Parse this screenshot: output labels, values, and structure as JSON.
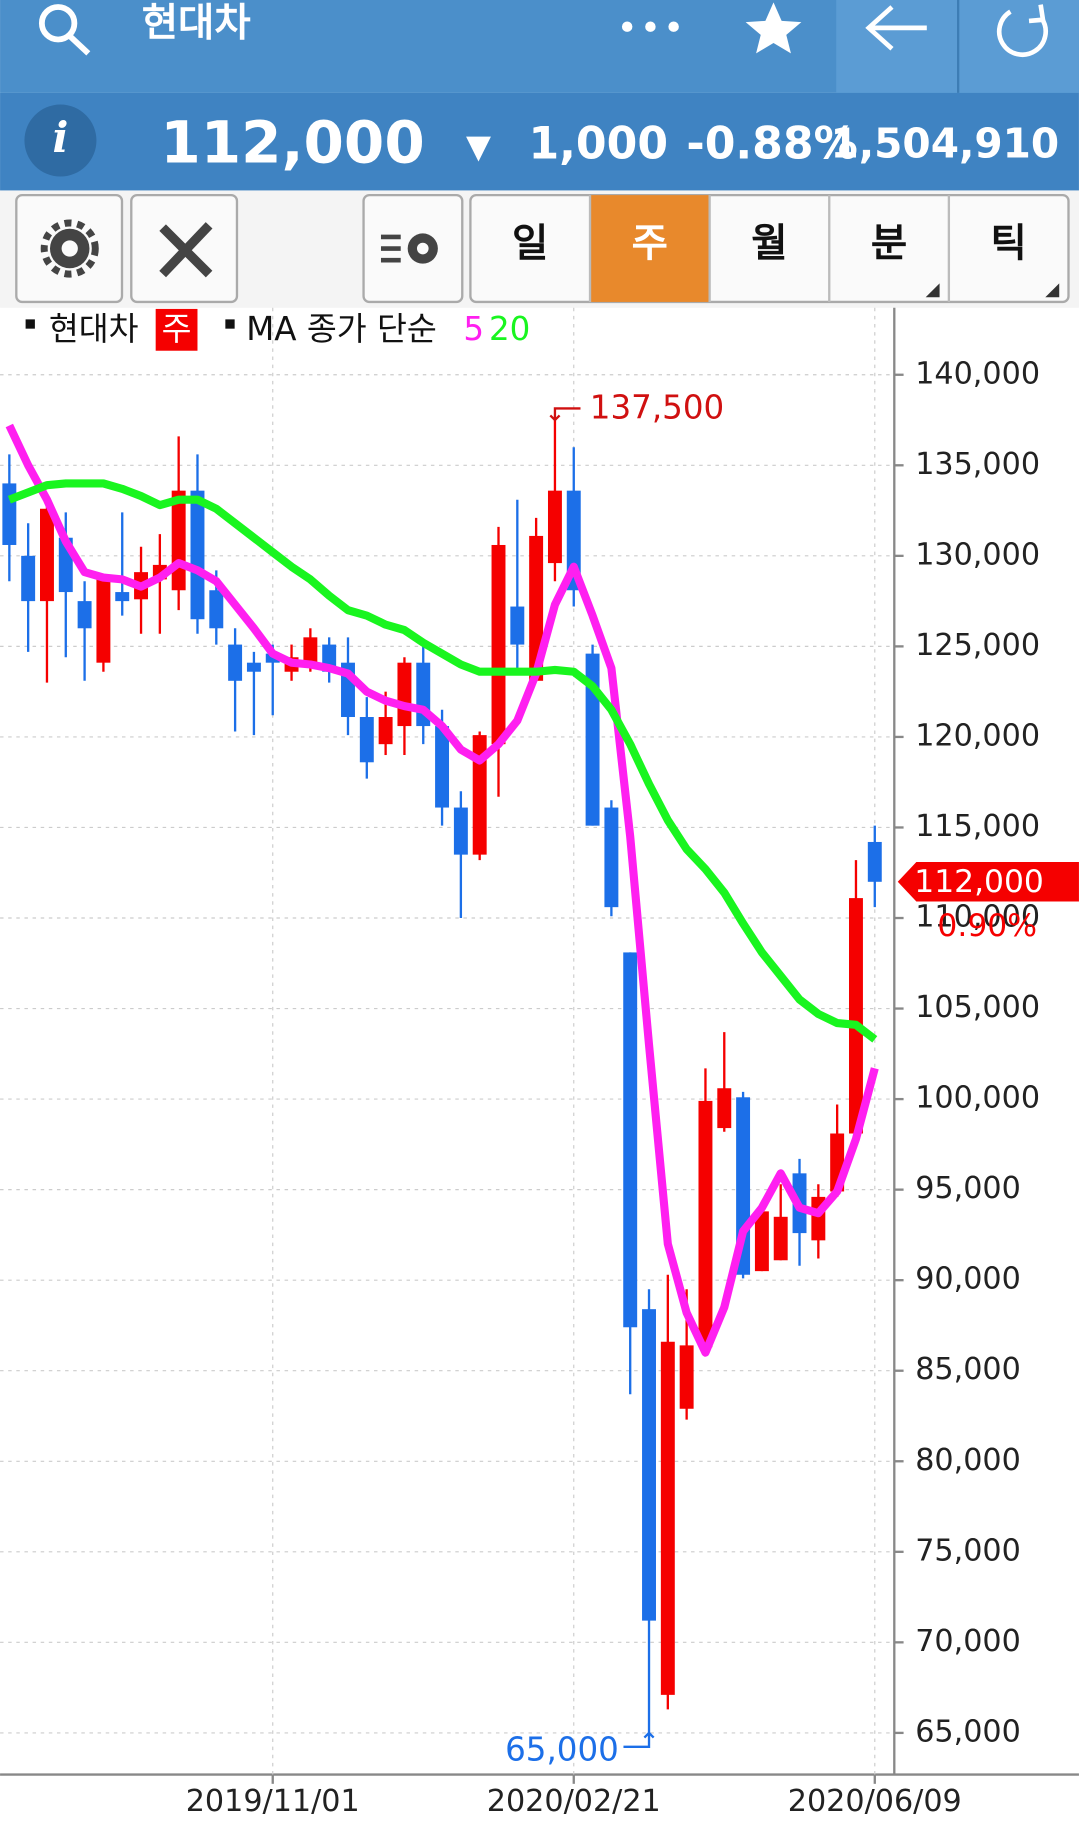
{
  "header": {
    "title": "현대차",
    "info": "i",
    "price": "112,000",
    "arrow": "▼",
    "change": "1,000",
    "change_pct": "-0.88%",
    "volume": "1,504,910"
  },
  "toolbar": {
    "tabs": [
      "일",
      "주",
      "월",
      "분",
      "틱"
    ],
    "selected": 1
  },
  "chart_data": {
    "type": "candlestick",
    "categories": [
      null,
      null,
      null,
      null,
      null,
      null,
      null,
      null,
      null,
      null,
      null,
      null,
      null,
      null,
      "2019/11/01",
      null,
      null,
      null,
      null,
      null,
      null,
      null,
      null,
      null,
      null,
      null,
      null,
      null,
      null,
      null,
      "2020/02/21",
      null,
      null,
      null,
      null,
      null,
      null,
      null,
      null,
      null,
      null,
      null,
      null,
      null,
      null,
      null,
      "2020/06/09"
    ],
    "legend_title": "MA 종가 단순",
    "series": [
      {
        "name": "현대차",
        "period": "주",
        "up_color": "#f50000",
        "down_color": "#1c6fe8",
        "open": [
          134000,
          130000,
          127500,
          131000,
          127500,
          124100,
          128000,
          127600,
          128700,
          128100,
          133600,
          128100,
          125100,
          124100,
          124600,
          123600,
          124100,
          125100,
          124100,
          121100,
          119600,
          120600,
          124100,
          120600,
          116100,
          113500,
          119600,
          127200,
          123100,
          129600,
          133600,
          124600,
          116100,
          108100,
          88400,
          67100,
          82900,
          86300,
          98400,
          100100,
          90500,
          91100,
          95900,
          92200,
          94900,
          98100,
          114200
        ],
        "high": [
          135600,
          131800,
          132900,
          132400,
          128600,
          128900,
          132400,
          130500,
          131200,
          136600,
          135600,
          129200,
          126000,
          124700,
          125100,
          125100,
          126000,
          125500,
          125500,
          122200,
          122500,
          124400,
          125100,
          121500,
          117000,
          120300,
          131600,
          133100,
          132100,
          137500,
          136000,
          125100,
          116500,
          108100,
          89500,
          90300,
          89500,
          101700,
          103700,
          100400,
          94000,
          95300,
          96700,
          95300,
          99700,
          113200,
          115100
        ],
        "low": [
          128600,
          124700,
          123000,
          124400,
          123100,
          123600,
          126700,
          125700,
          125700,
          127000,
          125700,
          125100,
          120300,
          120100,
          121200,
          123100,
          123600,
          123000,
          120100,
          117700,
          119000,
          119000,
          119600,
          115100,
          110000,
          113200,
          116700,
          123500,
          123100,
          128600,
          127200,
          115100,
          110100,
          83700,
          65000,
          66300,
          82300,
          86300,
          98200,
          90100,
          90500,
          91100,
          90800,
          91200,
          94600,
          98100,
          110600
        ],
        "close": [
          130600,
          127500,
          132600,
          128000,
          126000,
          128700,
          127500,
          129100,
          129500,
          133600,
          126500,
          126000,
          123100,
          123600,
          124100,
          124400,
          125500,
          123600,
          121100,
          118600,
          121100,
          124100,
          120600,
          116100,
          113500,
          120100,
          130600,
          125100,
          131100,
          133600,
          128100,
          115100,
          110600,
          87400,
          71200,
          86600,
          86400,
          99900,
          100600,
          90300,
          93800,
          93500,
          92600,
          94600,
          98100,
          111100,
          112000
        ]
      },
      {
        "name": "5",
        "type": "line",
        "color": "#ff1ff0",
        "values": [
          137200,
          135000,
          133100,
          130800,
          129100,
          128800,
          128700,
          128300,
          128800,
          129600,
          129200,
          128600,
          127300,
          126000,
          124600,
          124100,
          124000,
          123800,
          123500,
          122500,
          122000,
          121700,
          121500,
          120600,
          119300,
          118700,
          119600,
          120900,
          123500,
          127300,
          129400,
          126700,
          123800,
          114500,
          103000,
          92000,
          88200,
          86000,
          88500,
          92700,
          94000,
          95900,
          94000,
          93700,
          94900,
          97800,
          101700
        ]
      },
      {
        "name": "20",
        "type": "line",
        "color": "#19f51f",
        "values": [
          133100,
          133500,
          133900,
          134000,
          134000,
          134000,
          133700,
          133300,
          132800,
          133100,
          133100,
          132600,
          131800,
          131000,
          130200,
          129400,
          128700,
          127800,
          127000,
          126700,
          126200,
          125900,
          125200,
          124600,
          124000,
          123600,
          123600,
          123600,
          123600,
          123700,
          123600,
          122800,
          121500,
          119600,
          117400,
          115400,
          113800,
          112700,
          111400,
          109700,
          108100,
          106800,
          105500,
          104700,
          104200,
          104100,
          103300
        ]
      }
    ],
    "ylim": [
      62700,
      143700
    ],
    "yticks": [
      {
        "value": 65000,
        "label": "65,000"
      },
      {
        "value": 70000,
        "label": "70,000"
      },
      {
        "value": 75000,
        "label": "75,000"
      },
      {
        "value": 80000,
        "label": "80,000"
      },
      {
        "value": 85000,
        "label": "85,000"
      },
      {
        "value": 90000,
        "label": "90,000"
      },
      {
        "value": 95000,
        "label": "95,000"
      },
      {
        "value": 100000,
        "label": "100,000"
      },
      {
        "value": 105000,
        "label": "105,000"
      },
      {
        "value": 110000,
        "label": "110,000"
      },
      {
        "value": 115000,
        "label": "115,000"
      },
      {
        "value": 120000,
        "label": "120,000"
      },
      {
        "value": 125000,
        "label": "125,000"
      },
      {
        "value": 130000,
        "label": "130,000"
      },
      {
        "value": 135000,
        "label": "135,000"
      },
      {
        "value": 140000,
        "label": "140,000"
      }
    ],
    "grid": true,
    "annotations": [
      {
        "value": 137500,
        "label": "137,500",
        "color": "#d01010"
      },
      {
        "value": 65000,
        "label": "65,000",
        "color": "#1c6fe8"
      }
    ],
    "last": {
      "value": 112000,
      "label": "112,000",
      "change_label": "0.90%",
      "color": "#f50000"
    }
  }
}
